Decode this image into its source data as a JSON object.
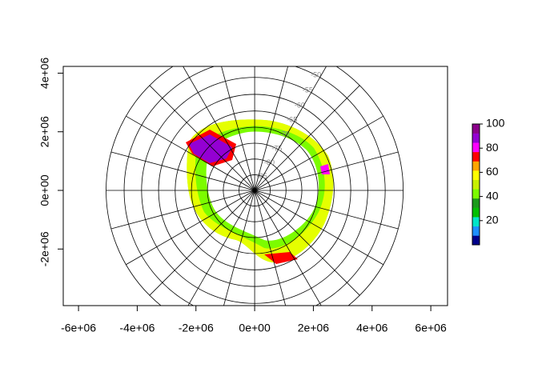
{
  "chart_data": {
    "type": "polar-map",
    "xlim": [
      -6520000,
      6570000
    ],
    "ylim": [
      -3930000,
      4230000
    ],
    "xticks": [
      {
        "value": -6000000,
        "label": "-6e+06"
      },
      {
        "value": -4000000,
        "label": "-4e+06"
      },
      {
        "value": -2000000,
        "label": "-2e+06"
      },
      {
        "value": 0,
        "label": "0e+00"
      },
      {
        "value": 2000000,
        "label": "2e+06"
      },
      {
        "value": 4000000,
        "label": "4e+06"
      },
      {
        "value": 6000000,
        "label": "6e+06"
      }
    ],
    "yticks": [
      {
        "value": -2000000,
        "label": "-2e+06"
      },
      {
        "value": 0,
        "label": "0e+00"
      },
      {
        "value": 2000000,
        "label": "2e+06"
      },
      {
        "value": 4000000,
        "label": "4e+06"
      }
    ],
    "latitudes": [
      -45,
      -50,
      -55,
      -60,
      -65,
      -70,
      -75,
      -80,
      -85
    ],
    "longitudes": [
      0,
      15,
      30,
      45,
      60,
      75,
      90,
      105,
      120,
      135,
      150,
      165,
      180,
      195,
      210,
      225,
      240,
      255,
      270,
      285,
      300,
      315,
      330,
      345
    ],
    "colorbar": {
      "lim": [
        0,
        100
      ],
      "ticks": [
        20,
        40,
        60,
        80,
        100
      ],
      "colors": [
        "#00008b",
        "#1e90ff",
        "#00e5c8",
        "#00c000",
        "#1a9a1a",
        "#7cfc00",
        "#c8f000",
        "#ffff00",
        "#ffa500",
        "#ff0000",
        "#ff00ff",
        "#9400d3",
        "#8b008b"
      ]
    }
  }
}
